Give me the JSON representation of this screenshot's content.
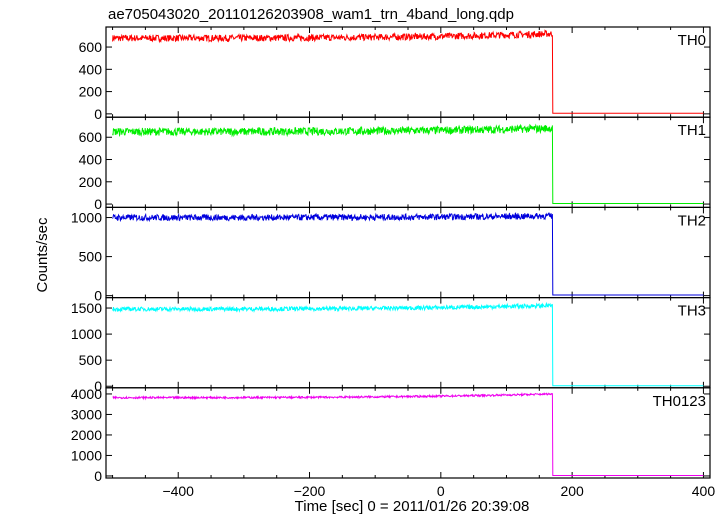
{
  "chart_data": {
    "type": "line",
    "title": "ae705043020_20110126203908_wam1_trn_4band_long.qdp",
    "xlabel": "Time [sec] 0 = 2011/01/26 20:39:08",
    "ylabel": "Counts/sec",
    "xlim": [
      -510,
      410
    ],
    "x_ticks": [
      -400,
      -200,
      0,
      200,
      400
    ],
    "x_tick_labels": [
      "−400",
      "−200",
      "0",
      "200",
      "400"
    ],
    "drop_time": 170,
    "grid": false,
    "series": [
      {
        "name": "TH0",
        "color": "#ff0000",
        "ylim": [
          -30,
          780
        ],
        "ticks": [
          0,
          200,
          400,
          600
        ],
        "level_start": 680,
        "level_end": 720,
        "noise": 30,
        "tail_level": 5,
        "x": [
          -500,
          -400,
          -300,
          -200,
          -100,
          0,
          100,
          165,
          170,
          175,
          400
        ],
        "y": [
          680,
          685,
          690,
          688,
          692,
          700,
          705,
          720,
          710,
          5,
          5
        ]
      },
      {
        "name": "TH1",
        "color": "#00ee00",
        "ylim": [
          -30,
          780
        ],
        "ticks": [
          0,
          200,
          400,
          600
        ],
        "level_start": 650,
        "level_end": 680,
        "noise": 35,
        "tail_level": 5,
        "x": [
          -500,
          -400,
          -300,
          -200,
          -100,
          0,
          100,
          165,
          170,
          175,
          400
        ],
        "y": [
          650,
          655,
          655,
          650,
          650,
          655,
          660,
          690,
          680,
          5,
          5
        ]
      },
      {
        "name": "TH2",
        "color": "#0000dd",
        "ylim": [
          -25,
          1130
        ],
        "ticks": [
          0,
          500,
          1000
        ],
        "level_start": 1000,
        "level_end": 1020,
        "noise": 40,
        "tail_level": 8,
        "x": [
          -500,
          -400,
          -300,
          -200,
          -100,
          0,
          100,
          165,
          170,
          175,
          400
        ],
        "y": [
          1000,
          1000,
          990,
          980,
          980,
          990,
          1000,
          1020,
          900,
          8,
          8
        ]
      },
      {
        "name": "TH3",
        "color": "#00ffff",
        "ylim": [
          -30,
          1700
        ],
        "ticks": [
          0,
          500,
          1000,
          1500
        ],
        "level_start": 1480,
        "level_end": 1550,
        "noise": 40,
        "tail_level": 10,
        "x": [
          -500,
          -400,
          -300,
          -200,
          -100,
          0,
          100,
          165,
          170,
          175,
          400
        ],
        "y": [
          1480,
          1470,
          1460,
          1450,
          1440,
          1460,
          1480,
          1550,
          1500,
          10,
          10
        ]
      },
      {
        "name": "TH0123",
        "color": "#ee00ee",
        "ylim": [
          -100,
          4300
        ],
        "ticks": [
          0,
          1000,
          2000,
          3000,
          4000
        ],
        "level_start": 3820,
        "level_end": 4000,
        "noise": 45,
        "tail_level": 20,
        "x": [
          -500,
          -400,
          -300,
          -200,
          -100,
          0,
          100,
          165,
          170,
          175,
          400
        ],
        "y": [
          3820,
          3800,
          3780,
          3760,
          3740,
          3780,
          3850,
          4000,
          3900,
          20,
          20
        ]
      }
    ]
  }
}
